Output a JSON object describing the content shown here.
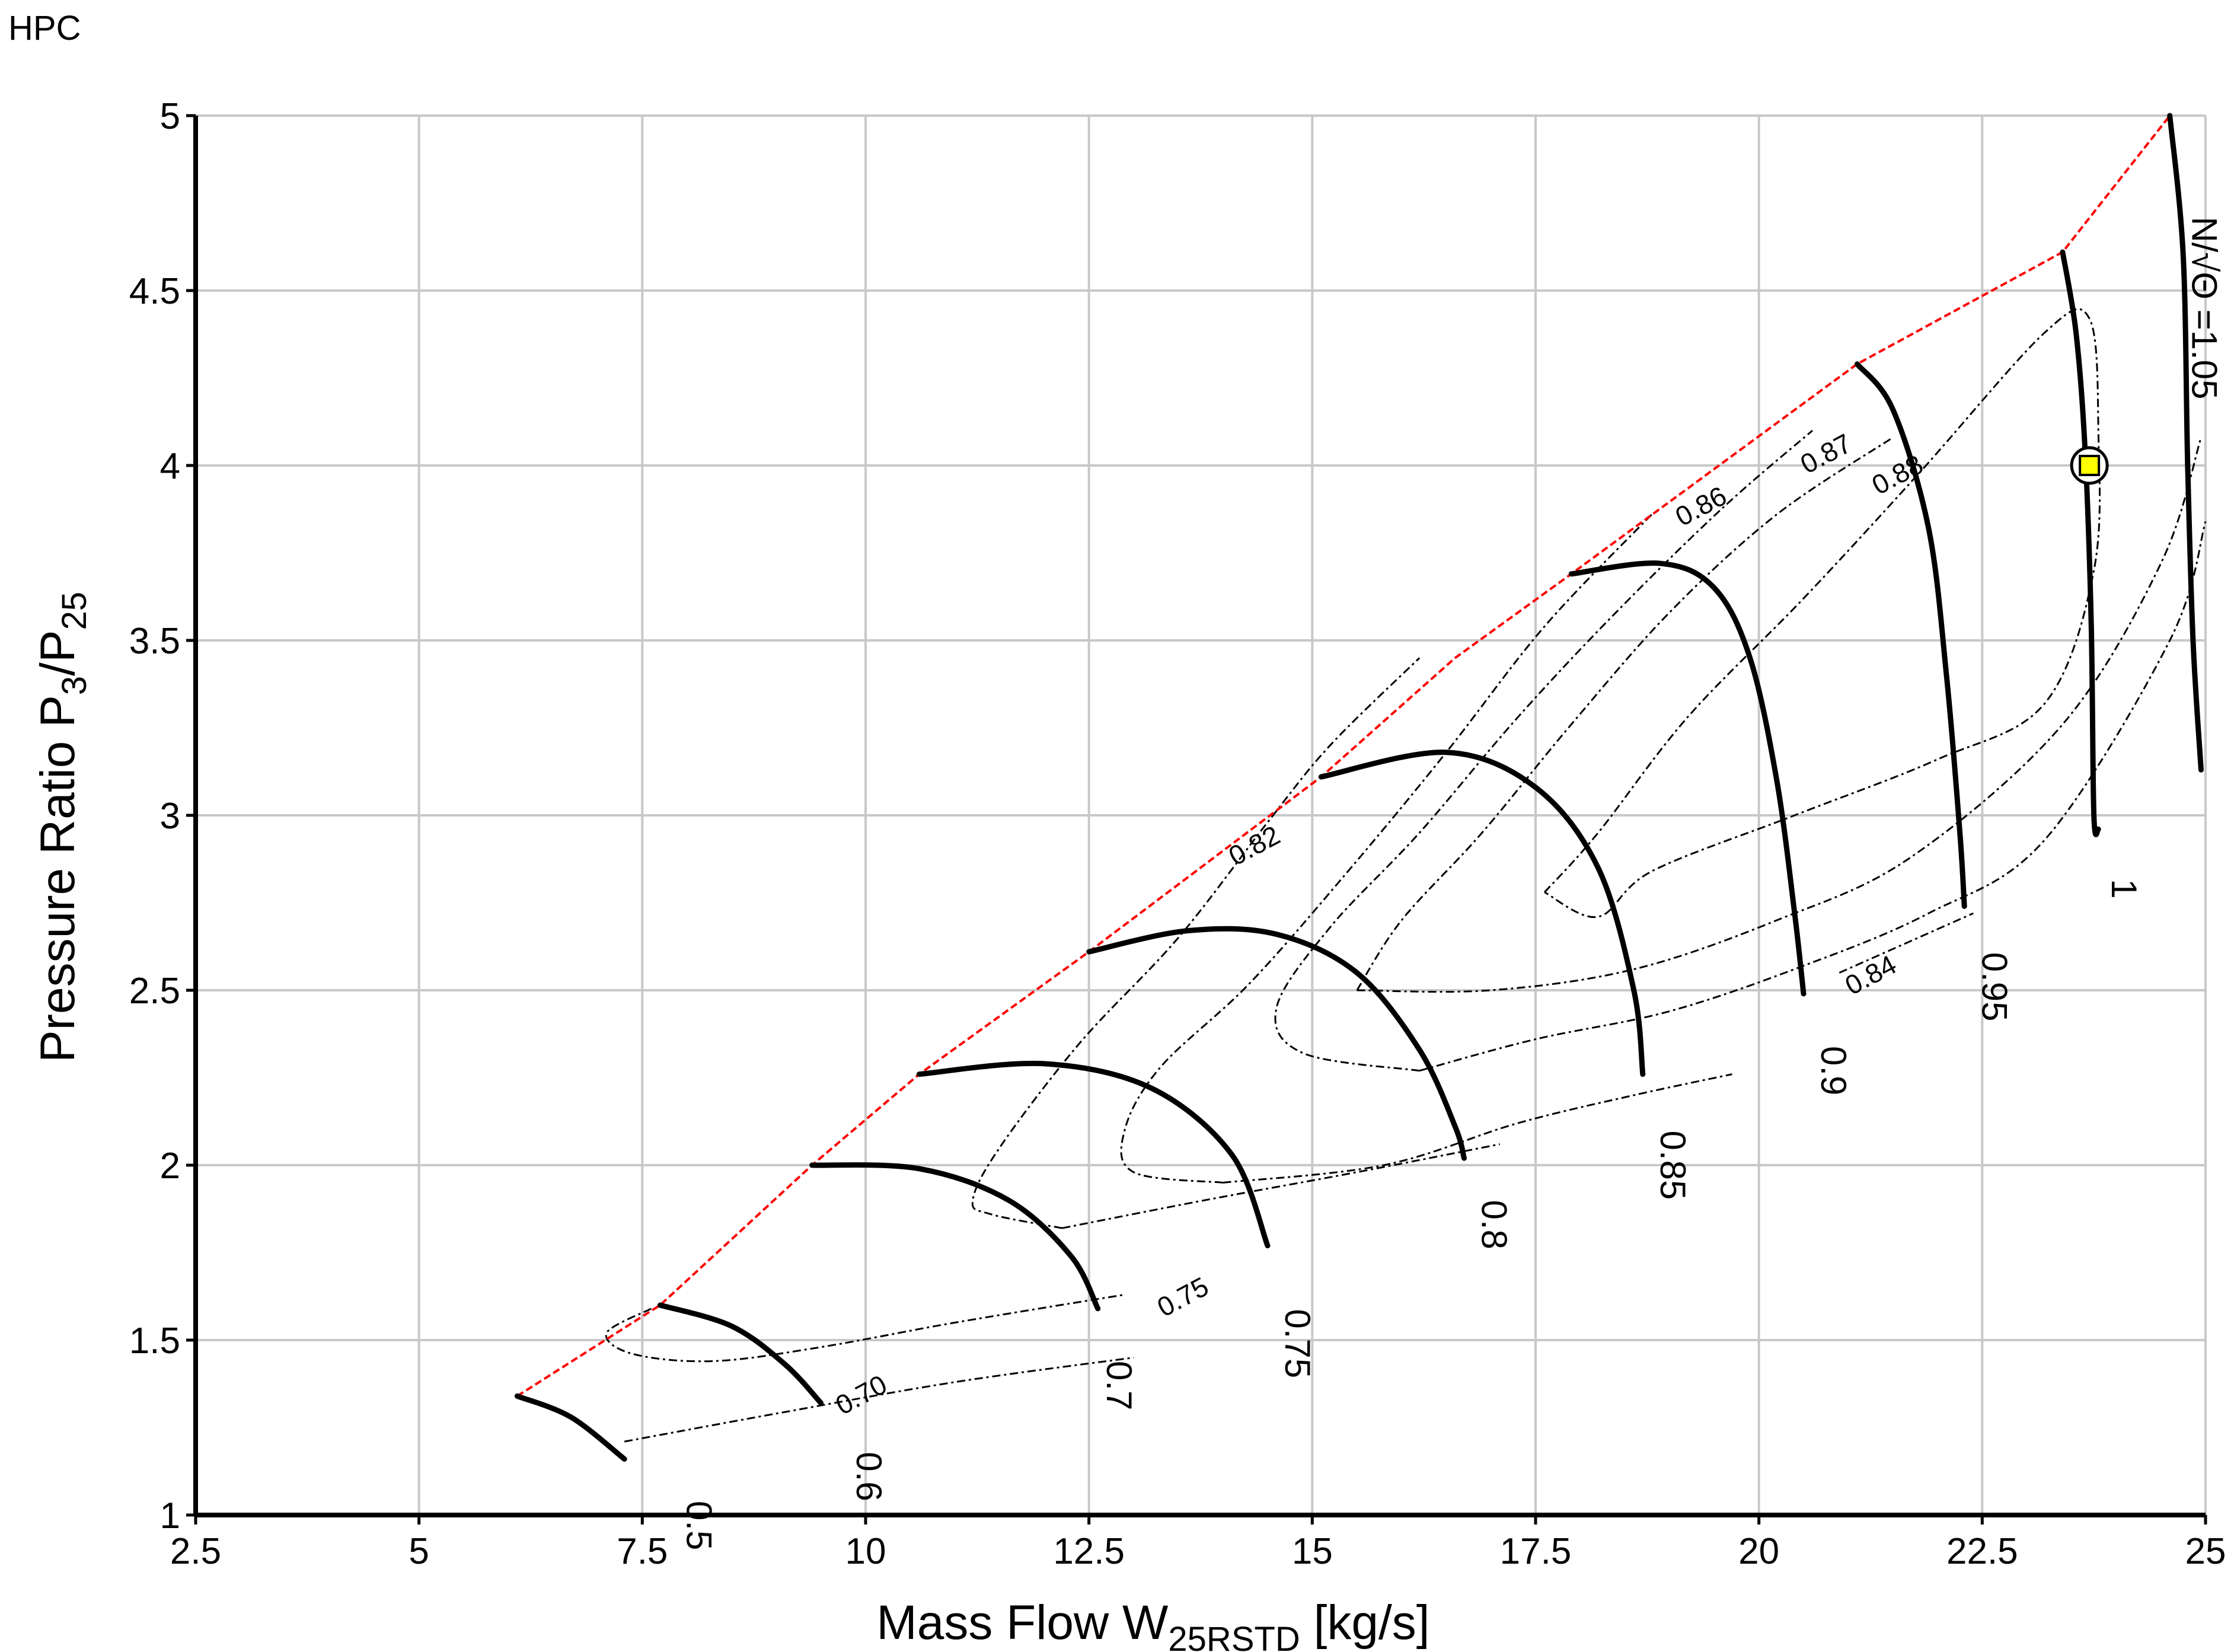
{
  "figure_label": "HPC",
  "chart_data": {
    "type": "line",
    "title": "",
    "xlabel_prefix": "Mass Flow  W",
    "xlabel_sub": "25RSTD",
    "xlabel_suffix": "  [kg/s]",
    "ylabel_prefix": "Pressure  Ratio  P",
    "ylabel_sub1": "3",
    "ylabel_mid": "/P",
    "ylabel_sub2": "25",
    "xlim": [
      2.5,
      25
    ],
    "ylim": [
      1,
      5
    ],
    "xticks": [
      2.5,
      5,
      7.5,
      10,
      12.5,
      15,
      17.5,
      20,
      22.5,
      25
    ],
    "xtick_labels": [
      "2.5",
      "5",
      "7.5",
      "10",
      "12.5",
      "15",
      "17.5",
      "20",
      "22.5",
      "25"
    ],
    "yticks": [
      1,
      1.5,
      2,
      2.5,
      3,
      3.5,
      4,
      4.5,
      5
    ],
    "ytick_labels": [
      "1",
      "1.5",
      "2",
      "2.5",
      "3",
      "3.5",
      "4",
      "4.5",
      "5"
    ],
    "grid": true,
    "colors": {
      "surge": "#ff0000",
      "speed": "#000000",
      "efficiency": "#000000",
      "op_fill": "#ffff00",
      "grid": "#c8c8c8"
    },
    "surge_line": [
      [
        6.1,
        1.34
      ],
      [
        7.7,
        1.6
      ],
      [
        9.4,
        2.0
      ],
      [
        10.6,
        2.26
      ],
      [
        12.5,
        2.61
      ],
      [
        15.1,
        3.11
      ],
      [
        16.6,
        3.45
      ],
      [
        17.9,
        3.69
      ],
      [
        21.1,
        4.29
      ],
      [
        23.4,
        4.61
      ],
      [
        24.6,
        5.0
      ]
    ],
    "speed_lines": [
      {
        "label": "0.5",
        "points": [
          [
            6.1,
            1.34
          ],
          [
            6.7,
            1.28
          ],
          [
            7.3,
            1.16
          ]
        ],
        "label_at": [
          8.0,
          0.97
        ]
      },
      {
        "label": "0.6",
        "points": [
          [
            7.7,
            1.6
          ],
          [
            8.5,
            1.54
          ],
          [
            9.1,
            1.43
          ],
          [
            9.5,
            1.32
          ]
        ],
        "label_at": [
          9.9,
          1.11
        ]
      },
      {
        "label": "0.7",
        "points": [
          [
            9.4,
            2.0
          ],
          [
            10.6,
            1.99
          ],
          [
            11.6,
            1.9
          ],
          [
            12.3,
            1.74
          ],
          [
            12.6,
            1.59
          ]
        ],
        "label_at": [
          12.7,
          1.37
        ]
      },
      {
        "label": "0.75",
        "points": [
          [
            10.6,
            2.26
          ],
          [
            12.0,
            2.29
          ],
          [
            13.2,
            2.22
          ],
          [
            14.1,
            2.03
          ],
          [
            14.5,
            1.77
          ]
        ],
        "label_at": [
          14.7,
          1.49
        ]
      },
      {
        "label": "0.8",
        "points": [
          [
            12.5,
            2.61
          ],
          [
            13.6,
            2.67
          ],
          [
            14.6,
            2.66
          ],
          [
            15.5,
            2.55
          ],
          [
            16.2,
            2.33
          ],
          [
            16.6,
            2.11
          ],
          [
            16.7,
            2.02
          ]
        ],
        "label_at": [
          16.9,
          1.83
        ]
      },
      {
        "label": "0.85",
        "points": [
          [
            15.1,
            3.11
          ],
          [
            16.5,
            3.18
          ],
          [
            17.5,
            3.08
          ],
          [
            18.2,
            2.85
          ],
          [
            18.6,
            2.5
          ],
          [
            18.7,
            2.26
          ]
        ],
        "label_at": [
          18.9,
          2.0
        ]
      },
      {
        "label": "0.9",
        "points": [
          [
            17.9,
            3.69
          ],
          [
            18.9,
            3.72
          ],
          [
            19.5,
            3.65
          ],
          [
            19.9,
            3.45
          ],
          [
            20.2,
            3.1
          ],
          [
            20.4,
            2.72
          ],
          [
            20.5,
            2.49
          ]
        ],
        "label_at": [
          20.7,
          2.27
        ]
      },
      {
        "label": "0.95",
        "points": [
          [
            21.1,
            4.29
          ],
          [
            21.5,
            4.16
          ],
          [
            21.9,
            3.82
          ],
          [
            22.1,
            3.4
          ],
          [
            22.25,
            2.95
          ],
          [
            22.3,
            2.74
          ]
        ],
        "label_at": [
          22.5,
          2.51
        ]
      },
      {
        "label": "1",
        "points": [
          [
            23.4,
            4.61
          ],
          [
            23.55,
            4.38
          ],
          [
            23.65,
            4.05
          ],
          [
            23.72,
            3.55
          ],
          [
            23.75,
            3.0
          ],
          [
            23.8,
            2.96
          ]
        ],
        "label_at": [
          23.95,
          2.79
        ]
      },
      {
        "label": "N/√Θ =1.05",
        "points": [
          [
            24.6,
            5.0
          ],
          [
            24.75,
            4.6
          ],
          [
            24.8,
            4.0
          ],
          [
            24.86,
            3.5
          ],
          [
            24.95,
            3.13
          ]
        ],
        "label_at": [
          24.85,
          4.45
        ]
      }
    ],
    "efficiency_labels": [
      {
        "label": "0.70",
        "at": [
          10.0,
          1.32
        ]
      },
      {
        "label": "0.75",
        "at": [
          13.6,
          1.6
        ]
      },
      {
        "label": "0.82",
        "at": [
          14.4,
          2.89
        ]
      },
      {
        "label": "0.84",
        "at": [
          21.3,
          2.52
        ]
      },
      {
        "label": "0.86",
        "at": [
          19.4,
          3.86
        ]
      },
      {
        "label": "0.87",
        "at": [
          20.8,
          4.01
        ]
      },
      {
        "label": "0.88",
        "at": [
          21.6,
          3.95
        ]
      }
    ],
    "efficiency_contours": [
      {
        "label": "0.70",
        "points": [
          [
            7.3,
            1.21
          ],
          [
            9.0,
            1.29
          ],
          [
            11.0,
            1.38
          ],
          [
            13.0,
            1.45
          ]
        ]
      },
      {
        "label": "0.75",
        "points": [
          [
            7.6,
            1.59
          ],
          [
            7.1,
            1.52
          ],
          [
            7.4,
            1.46
          ],
          [
            8.3,
            1.44
          ],
          [
            9.5,
            1.48
          ],
          [
            11.0,
            1.55
          ],
          [
            12.9,
            1.63
          ]
        ]
      },
      {
        "label": "0.82",
        "points": [
          [
            12.2,
            1.82
          ],
          [
            11.4,
            1.86
          ],
          [
            11.2,
            1.9
          ],
          [
            11.5,
            2.05
          ],
          [
            12.4,
            2.35
          ],
          [
            13.5,
            2.65
          ],
          [
            14.5,
            2.98
          ],
          [
            15.2,
            3.2
          ],
          [
            16.2,
            3.45
          ]
        ]
      },
      {
        "label": "0.82",
        "points": [
          [
            12.2,
            1.82
          ],
          [
            13.8,
            1.9
          ],
          [
            15.5,
            1.98
          ],
          [
            17.1,
            2.06
          ]
        ]
      },
      {
        "label": "0.84",
        "points": [
          [
            14.0,
            1.95
          ],
          [
            13.0,
            1.98
          ],
          [
            12.9,
            2.1
          ],
          [
            13.3,
            2.28
          ],
          [
            14.3,
            2.52
          ],
          [
            15.4,
            2.84
          ],
          [
            16.5,
            3.18
          ],
          [
            17.6,
            3.54
          ],
          [
            18.8,
            3.86
          ]
        ]
      },
      {
        "label": "0.84",
        "points": [
          [
            14.0,
            1.95
          ],
          [
            15.8,
            2.0
          ],
          [
            17.3,
            2.12
          ],
          [
            18.6,
            2.2
          ],
          [
            19.7,
            2.26
          ]
        ]
      },
      {
        "label": "0.84",
        "points": [
          [
            20.9,
            2.55
          ],
          [
            22.4,
            2.72
          ]
        ]
      },
      {
        "label": "0.86",
        "points": [
          [
            16.2,
            2.27
          ],
          [
            14.9,
            2.32
          ],
          [
            14.6,
            2.45
          ],
          [
            15.2,
            2.68
          ],
          [
            16.2,
            2.95
          ],
          [
            17.3,
            3.28
          ],
          [
            18.4,
            3.58
          ],
          [
            19.6,
            3.88
          ],
          [
            20.6,
            4.1
          ]
        ]
      },
      {
        "label": "0.86",
        "points": [
          [
            16.2,
            2.27
          ],
          [
            17.5,
            2.36
          ],
          [
            19.0,
            2.44
          ],
          [
            20.5,
            2.57
          ],
          [
            21.9,
            2.72
          ],
          [
            23.2,
            2.93
          ],
          [
            24.6,
            3.5
          ],
          [
            25.0,
            3.84
          ]
        ]
      },
      {
        "label": "0.87",
        "points": [
          [
            15.5,
            2.5
          ],
          [
            16.0,
            2.7
          ],
          [
            16.9,
            2.95
          ],
          [
            17.9,
            3.26
          ],
          [
            19.0,
            3.58
          ],
          [
            20.2,
            3.86
          ],
          [
            21.5,
            4.08
          ]
        ]
      },
      {
        "label": "0.87",
        "points": [
          [
            15.5,
            2.5
          ],
          [
            17.0,
            2.5
          ],
          [
            18.6,
            2.56
          ],
          [
            20.2,
            2.7
          ],
          [
            21.7,
            2.88
          ],
          [
            23.4,
            3.26
          ],
          [
            24.5,
            3.72
          ],
          [
            24.95,
            4.08
          ]
        ]
      },
      {
        "label": "0.88",
        "points": [
          [
            17.6,
            2.78
          ],
          [
            18.2,
            2.95
          ],
          [
            19.2,
            3.28
          ],
          [
            20.5,
            3.62
          ],
          [
            21.8,
            3.98
          ],
          [
            23.2,
            4.38
          ],
          [
            23.7,
            4.42
          ],
          [
            23.8,
            4.1
          ],
          [
            23.75,
            3.7
          ],
          [
            23.2,
            3.32
          ],
          [
            22.0,
            3.16
          ],
          [
            20.4,
            3.0
          ],
          [
            18.8,
            2.84
          ],
          [
            18.2,
            2.71
          ],
          [
            17.6,
            2.78
          ]
        ]
      }
    ],
    "operating_point": {
      "x": 23.7,
      "y": 4.0
    }
  }
}
